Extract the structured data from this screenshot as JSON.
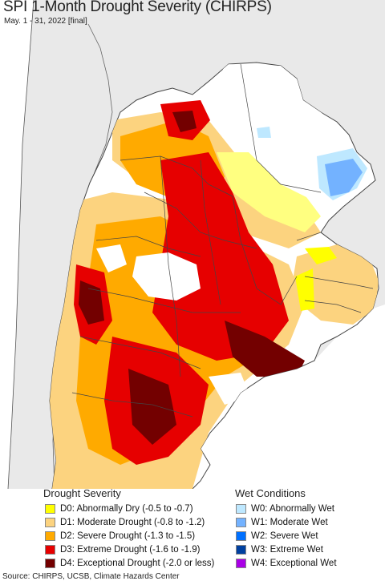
{
  "title": "SPI 1-Month Drought Severity (CHIRPS)",
  "subtitle": "May. 1 - 31, 2022 [final]",
  "legend": {
    "drought_title": "Drought Severity",
    "wet_title": "Wet Conditions",
    "drought": [
      {
        "label": "D0: Abnormally Dry (-0.5 to -0.7)",
        "color": "#ffff00"
      },
      {
        "label": "D1: Moderate Drought (-0.8 to -1.2)",
        "color": "#fcd37f"
      },
      {
        "label": "D2: Severe Drought (-1.3 to -1.5)",
        "color": "#ffaa00"
      },
      {
        "label": "D3: Extreme Drought (-1.6 to -1.9)",
        "color": "#e60000"
      },
      {
        "label": "D4: Exceptional Drought (-2.0 or less)",
        "color": "#730000"
      }
    ],
    "wet": [
      {
        "label": "W0: Abnormally Wet",
        "color": "#bee8ff"
      },
      {
        "label": "W1: Moderate Wet",
        "color": "#73b2ff"
      },
      {
        "label": "W2: Severe Wet",
        "color": "#0070ff"
      },
      {
        "label": "W3: Extreme Wet",
        "color": "#0040a0"
      },
      {
        "label": "W4: Exceptional Wet",
        "color": "#a900e6"
      }
    ]
  },
  "map_colors": {
    "outside": "#e9e9e9",
    "land_normal": "#ffffff",
    "ocean": "#ffffff",
    "border": "#555555"
  },
  "source": "Source: CHIRPS, UCSB, Climate Hazards Center"
}
